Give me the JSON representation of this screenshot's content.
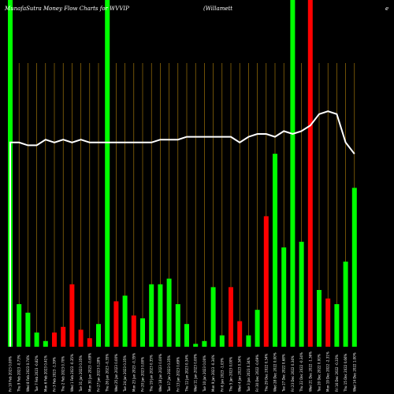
{
  "chart_data": {
    "type": "bar",
    "title": "MunafaSutra  Money Flow  Charts for WVVIP",
    "title_right": "(Willamett",
    "title_far_right": "e",
    "colors": {
      "up": "#00ff00",
      "down": "#ff0000",
      "line": "#ffffff",
      "grid": "#b8860b",
      "background": "#000000"
    },
    "ylim": [
      0,
      100
    ],
    "bars": [
      {
        "color": "green",
        "value": 2,
        "tall": true,
        "label": "Fri 10 Feb 2023 0.00%"
      },
      {
        "color": "green",
        "value": 15,
        "tall": false,
        "label": "Thu 9 Feb 2023 -0.73%"
      },
      {
        "color": "green",
        "value": 12,
        "tall": false,
        "label": "Wed 8 Feb 2023 0.74%"
      },
      {
        "color": "green",
        "value": 5,
        "tall": false,
        "label": "Tue 7 Feb 2023 -0.82%"
      },
      {
        "color": "green",
        "value": 2,
        "tall": false,
        "label": "Mon 6 Feb 2023 0.41%"
      },
      {
        "color": "red",
        "value": 5,
        "tall": false,
        "label": "Fri 3 Feb 2023 -1.39%"
      },
      {
        "color": "red",
        "value": 7,
        "tall": false,
        "label": "Thu 2 Feb 2023 0.70%"
      },
      {
        "color": "red",
        "value": 22,
        "tall": false,
        "label": "Wed 1 Feb 2023 -0.35%"
      },
      {
        "color": "red",
        "value": 6,
        "tall": false,
        "label": "Tue 31 Jan 2023 0.35%"
      },
      {
        "color": "red",
        "value": 3,
        "tall": false,
        "label": "Mon 30 Jan 2023 -0.69%"
      },
      {
        "color": "green",
        "value": 8,
        "tall": false,
        "label": "Fri 27 Jan 2023 0.28%"
      },
      {
        "color": "green",
        "value": 2,
        "tall": true,
        "label": "Thu 26 Jan 2023 -0.35%"
      },
      {
        "color": "red",
        "value": 16,
        "tall": false,
        "label": "Wed 25 Jan 2023 0.00%"
      },
      {
        "color": "green",
        "value": 18,
        "tall": false,
        "label": "Tue 24 Jan 2023 0.35%"
      },
      {
        "color": "red",
        "value": 11,
        "tall": false,
        "label": "Mon 23 Jan 2023 -0.35%"
      },
      {
        "color": "green",
        "value": 10,
        "tall": false,
        "label": "Fri 20 Jan 2023 0.00%"
      },
      {
        "color": "green",
        "value": 22,
        "tall": false,
        "label": "Thu 19 Jan 2023 0.35%"
      },
      {
        "color": "green",
        "value": 22,
        "tall": false,
        "label": "Wed 18 Jan 2023 0.00%"
      },
      {
        "color": "green",
        "value": 24,
        "tall": false,
        "label": "Tue 17 Jan 2023 0.35%"
      },
      {
        "color": "green",
        "value": 15,
        "tall": false,
        "label": "Fri 13 Jan 2023 0.69%"
      },
      {
        "color": "green",
        "value": 8,
        "tall": false,
        "label": "Thu 12 Jan 2023 0.34%"
      },
      {
        "color": "green",
        "value": 1,
        "tall": false,
        "label": "Wed 11 Jan 2023 0.00%"
      },
      {
        "color": "green",
        "value": 2,
        "tall": false,
        "label": "Tue 10 Jan 2023 0.00%"
      },
      {
        "color": "green",
        "value": 21,
        "tall": false,
        "label": "Mon 9 Jan 2023 -0.34%"
      },
      {
        "color": "green",
        "value": 4,
        "tall": false,
        "label": "Fri 6 Jan 2023 -1.03%"
      },
      {
        "color": "red",
        "value": 21,
        "tall": false,
        "label": "Thu 5 Jan 2023 0.00%"
      },
      {
        "color": "red",
        "value": 9,
        "tall": false,
        "label": "Wed 4 Jan 2023 0.34%"
      },
      {
        "color": "green",
        "value": 4,
        "tall": false,
        "label": "Tue 3 Jan 2023 0.34%"
      },
      {
        "color": "green",
        "value": 13,
        "tall": false,
        "label": "Fri 30 Dec 2022 -0.69%"
      },
      {
        "color": "red",
        "value": 46,
        "tall": false,
        "label": "Thu 29 Dec 2022 0.34%"
      },
      {
        "color": "green",
        "value": 68,
        "tall": false,
        "label": "Wed 28 Dec 2022 0.00%"
      },
      {
        "color": "green",
        "value": 35,
        "tall": false,
        "label": "Tue 27 Dec 2022 0.68%"
      },
      {
        "color": "green",
        "value": 100,
        "tall": true,
        "label": "Fri 23 Dec 2022 0.34%"
      },
      {
        "color": "green",
        "value": 37,
        "tall": false,
        "label": "Thu 22 Dec 2022 -0.34%"
      },
      {
        "color": "red",
        "value": 100,
        "tall": true,
        "label": "Wed 21 Dec 2022 -1.36%"
      },
      {
        "color": "green",
        "value": 20,
        "tall": false,
        "label": "Tue 20 Dec 2022 0.00%"
      },
      {
        "color": "red",
        "value": 17,
        "tall": false,
        "label": "Mon 19 Dec 2022 -2.31%"
      },
      {
        "color": "green",
        "value": 15,
        "tall": false,
        "label": "Fri 16 Dec 2022 -0.33%"
      },
      {
        "color": "green",
        "value": 30,
        "tall": false,
        "label": "Thu 15 Dec 2022 0.66%"
      },
      {
        "color": "green",
        "value": 56,
        "tall": false,
        "label": "Wed 14 Dec 2022 1.00%"
      }
    ],
    "price_line": [
      72,
      72,
      71,
      71,
      73,
      72,
      73,
      72,
      73,
      72,
      72,
      72,
      72,
      72,
      72,
      72,
      72,
      73,
      73,
      73,
      74,
      74,
      74,
      74,
      74,
      74,
      72,
      74,
      75,
      75,
      74,
      76,
      75,
      76,
      78,
      82,
      83,
      82,
      72,
      68
    ]
  }
}
